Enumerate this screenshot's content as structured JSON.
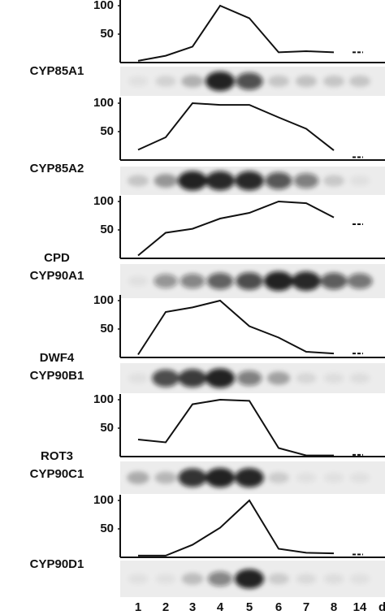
{
  "chart_data": [
    {
      "type": "line",
      "gene_labels": [
        "CYP85A1"
      ],
      "values": [
        3,
        12,
        28,
        100,
        78,
        18,
        20,
        18,
        18
      ],
      "ylim": [
        0,
        110
      ],
      "yticks": [
        50,
        100
      ],
      "color": "#111111"
    },
    {
      "type": "line",
      "gene_labels": [
        "CYP85A2"
      ],
      "values": [
        18,
        40,
        100,
        97,
        97,
        75,
        55,
        17,
        5
      ],
      "ylim": [
        0,
        110
      ],
      "yticks": [
        50,
        100
      ],
      "color": "#111111"
    },
    {
      "type": "line",
      "gene_labels": [
        "CPD",
        "CYP90A1"
      ],
      "values": [
        5,
        45,
        52,
        70,
        80,
        100,
        97,
        72,
        60
      ],
      "ylim": [
        0,
        110
      ],
      "yticks": [
        50,
        100
      ],
      "color": "#111111"
    },
    {
      "type": "line",
      "gene_labels": [
        "DWF4",
        "CYP90B1"
      ],
      "values": [
        5,
        80,
        88,
        100,
        55,
        35,
        10,
        7,
        7
      ],
      "ylim": [
        0,
        110
      ],
      "yticks": [
        50,
        100
      ],
      "color": "#111111"
    },
    {
      "type": "line",
      "gene_labels": [
        "ROT3",
        "CYP90C1"
      ],
      "values": [
        30,
        25,
        92,
        100,
        98,
        15,
        2,
        2,
        3
      ],
      "ylim": [
        0,
        110
      ],
      "yticks": [
        50,
        100
      ],
      "color": "#111111"
    },
    {
      "type": "line",
      "gene_labels": [
        "CYP90D1"
      ],
      "values": [
        3,
        3,
        22,
        52,
        100,
        15,
        8,
        7,
        5
      ],
      "ylim": [
        0,
        110
      ],
      "yticks": [
        50,
        100
      ],
      "color": "#111111",
      "categories": [
        "1",
        "2",
        "3",
        "4",
        "5",
        "6",
        "7",
        "8",
        "14"
      ],
      "x_unit": "d"
    }
  ]
}
